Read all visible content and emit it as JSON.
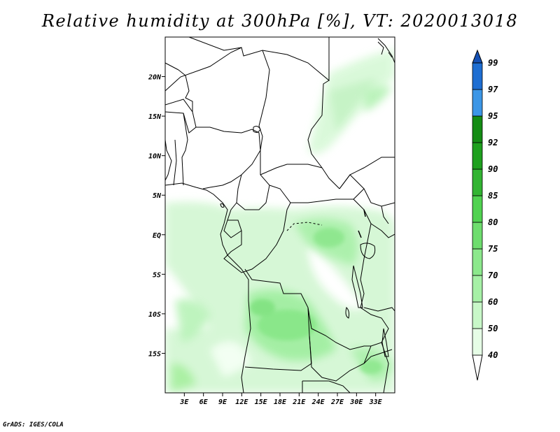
{
  "title": "Relative humidity at 300hPa [%], VT: 2020013018",
  "credit": "GrADS: IGES/COLA",
  "map": {
    "lon_range": [
      0,
      36
    ],
    "lat_range": [
      -20,
      25
    ],
    "lat_ticks": [
      {
        "value": 20,
        "label": "20N"
      },
      {
        "value": 15,
        "label": "15N"
      },
      {
        "value": 10,
        "label": "10N"
      },
      {
        "value": 5,
        "label": "5N"
      },
      {
        "value": 0,
        "label": "EQ"
      },
      {
        "value": -5,
        "label": "5S"
      },
      {
        "value": -10,
        "label": "10S"
      },
      {
        "value": -15,
        "label": "15S"
      }
    ],
    "lon_ticks": [
      {
        "value": 3,
        "label": "3E"
      },
      {
        "value": 6,
        "label": "6E"
      },
      {
        "value": 9,
        "label": "9E"
      },
      {
        "value": 12,
        "label": "12E"
      },
      {
        "value": 15,
        "label": "15E"
      },
      {
        "value": 18,
        "label": "18E"
      },
      {
        "value": 21,
        "label": "21E"
      },
      {
        "value": 24,
        "label": "24E"
      },
      {
        "value": 27,
        "label": "27E"
      },
      {
        "value": 30,
        "label": "30E"
      },
      {
        "value": 33,
        "label": "33E"
      }
    ]
  },
  "colorbar": {
    "levels": [
      "40",
      "50",
      "60",
      "70",
      "75",
      "80",
      "85",
      "90",
      "92",
      "95",
      "97",
      "99"
    ],
    "colors": [
      "#ffffff",
      "#e6fde6",
      "#c8f7c8",
      "#a6f0a6",
      "#8ce88c",
      "#6edd6e",
      "#50d250",
      "#32b432",
      "#1ea01e",
      "#148c14",
      "#3c96e6",
      "#1e6ed2",
      "#1450b4"
    ]
  },
  "colors": {
    "boundary": "#000000",
    "background": "#ffffff"
  }
}
